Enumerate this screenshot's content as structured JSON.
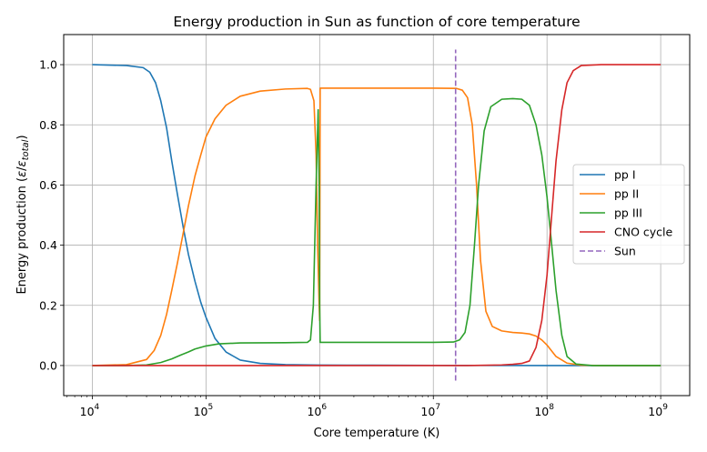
{
  "chart_data": {
    "type": "line",
    "title": "Energy production in Sun as function of core temperature",
    "xlabel": "Core temperature (K)",
    "ylabel": "Energy production (ε/ε_total)",
    "xscale": "log",
    "xlim": [
      5600.0,
      1800000000.0
    ],
    "ylim": [
      -0.1,
      1.1
    ],
    "grid": true,
    "legend_position": "center-right",
    "x_ticks": [
      {
        "exp": "4",
        "value": 10000.0
      },
      {
        "exp": "5",
        "value": 100000.0
      },
      {
        "exp": "6",
        "value": 1000000.0
      },
      {
        "exp": "7",
        "value": 10000000.0
      },
      {
        "exp": "8",
        "value": 100000000.0
      },
      {
        "exp": "9",
        "value": 1000000000.0
      }
    ],
    "y_ticks": [
      {
        "label": "0.0",
        "value": 0.0
      },
      {
        "label": "0.2",
        "value": 0.2
      },
      {
        "label": "0.4",
        "value": 0.4
      },
      {
        "label": "0.6",
        "value": 0.6
      },
      {
        "label": "0.8",
        "value": 0.8
      },
      {
        "label": "1.0",
        "value": 1.0
      }
    ],
    "series": [
      {
        "name": "pp I",
        "color": "#1f77b4",
        "style": "solid",
        "points": [
          [
            10000.0,
            1.0
          ],
          [
            20000.0,
            0.997
          ],
          [
            28000.0,
            0.99
          ],
          [
            32000.0,
            0.975
          ],
          [
            36000.0,
            0.94
          ],
          [
            40000.0,
            0.88
          ],
          [
            45000.0,
            0.79
          ],
          [
            50000.0,
            0.68
          ],
          [
            56000.0,
            0.57
          ],
          [
            63000.0,
            0.46
          ],
          [
            70000.0,
            0.37
          ],
          [
            80000.0,
            0.28
          ],
          [
            90000.0,
            0.21
          ],
          [
            100000.0,
            0.16
          ],
          [
            120000.0,
            0.09
          ],
          [
            150000.0,
            0.045
          ],
          [
            200000.0,
            0.018
          ],
          [
            300000.0,
            0.007
          ],
          [
            500000.0,
            0.003
          ],
          [
            1000000.0,
            0.0015
          ],
          [
            3000000.0,
            0.001
          ],
          [
            10000000.0,
            0.0005
          ],
          [
            30000000.0,
            0.0002
          ],
          [
            100000000.0,
            0.0
          ],
          [
            1000000000.0,
            0.0
          ]
        ]
      },
      {
        "name": "pp II",
        "color": "#ff7f0e",
        "style": "solid",
        "points": [
          [
            10000.0,
            0.0
          ],
          [
            20000.0,
            0.003
          ],
          [
            30000.0,
            0.02
          ],
          [
            35000.0,
            0.05
          ],
          [
            40000.0,
            0.1
          ],
          [
            45000.0,
            0.17
          ],
          [
            50000.0,
            0.25
          ],
          [
            56000.0,
            0.34
          ],
          [
            63000.0,
            0.44
          ],
          [
            70000.0,
            0.53
          ],
          [
            80000.0,
            0.63
          ],
          [
            90000.0,
            0.7
          ],
          [
            100000.0,
            0.76
          ],
          [
            120000.0,
            0.82
          ],
          [
            150000.0,
            0.865
          ],
          [
            200000.0,
            0.895
          ],
          [
            300000.0,
            0.912
          ],
          [
            500000.0,
            0.919
          ],
          [
            780000.0,
            0.921
          ],
          [
            830000.0,
            0.918
          ],
          [
            890000.0,
            0.88
          ],
          [
            930000.0,
            0.7
          ],
          [
            960000.0,
            0.4
          ],
          [
            990000.0,
            0.2
          ],
          [
            1000000.0,
            0.15
          ],
          [
            1010000.0,
            0.922
          ],
          [
            3000000.0,
            0.922
          ],
          [
            10000000.0,
            0.922
          ],
          [
            16000000.0,
            0.921
          ],
          [
            18000000.0,
            0.915
          ],
          [
            20000000.0,
            0.89
          ],
          [
            22000000.0,
            0.8
          ],
          [
            24000000.0,
            0.6
          ],
          [
            26000000.0,
            0.35
          ],
          [
            29000000.0,
            0.18
          ],
          [
            33000000.0,
            0.13
          ],
          [
            40000000.0,
            0.115
          ],
          [
            50000000.0,
            0.11
          ],
          [
            60000000.0,
            0.108
          ],
          [
            70000000.0,
            0.105
          ],
          [
            80000000.0,
            0.098
          ],
          [
            90000000.0,
            0.085
          ],
          [
            100000000.0,
            0.068
          ],
          [
            120000000.0,
            0.03
          ],
          [
            150000000.0,
            0.008
          ],
          [
            200000000.0,
            0.001
          ],
          [
            300000000.0,
            0.0
          ],
          [
            1000000000.0,
            0.0
          ]
        ]
      },
      {
        "name": "pp III",
        "color": "#2ca02c",
        "style": "solid",
        "points": [
          [
            10000.0,
            0.0
          ],
          [
            20000.0,
            0.0
          ],
          [
            30000.0,
            0.002
          ],
          [
            40000.0,
            0.01
          ],
          [
            50000.0,
            0.022
          ],
          [
            60000.0,
            0.035
          ],
          [
            70000.0,
            0.045
          ],
          [
            80000.0,
            0.055
          ],
          [
            100000.0,
            0.065
          ],
          [
            130000.0,
            0.072
          ],
          [
            200000.0,
            0.075
          ],
          [
            500000.0,
            0.076
          ],
          [
            780000.0,
            0.077
          ],
          [
            830000.0,
            0.085
          ],
          [
            880000.0,
            0.2
          ],
          [
            930000.0,
            0.6
          ],
          [
            970000.0,
            0.85
          ],
          [
            990000.0,
            0.6
          ],
          [
            1000000.0,
            0.2
          ],
          [
            1010000.0,
            0.077
          ],
          [
            3000000.0,
            0.077
          ],
          [
            10000000.0,
            0.077
          ],
          [
            15000000.0,
            0.078
          ],
          [
            17000000.0,
            0.085
          ],
          [
            19000000.0,
            0.11
          ],
          [
            21000000.0,
            0.2
          ],
          [
            23000000.0,
            0.4
          ],
          [
            25000000.0,
            0.6
          ],
          [
            28000000.0,
            0.78
          ],
          [
            32000000.0,
            0.86
          ],
          [
            40000000.0,
            0.885
          ],
          [
            50000000.0,
            0.887
          ],
          [
            60000000.0,
            0.885
          ],
          [
            70000000.0,
            0.865
          ],
          [
            80000000.0,
            0.8
          ],
          [
            90000000.0,
            0.7
          ],
          [
            100000000.0,
            0.56
          ],
          [
            110000000.0,
            0.4
          ],
          [
            120000000.0,
            0.25
          ],
          [
            135000000.0,
            0.1
          ],
          [
            150000000.0,
            0.03
          ],
          [
            180000000.0,
            0.005
          ],
          [
            250000000.0,
            0.0
          ],
          [
            1000000000.0,
            0.0
          ]
        ]
      },
      {
        "name": "CNO cycle",
        "color": "#d62728",
        "style": "solid",
        "points": [
          [
            10000.0,
            0.0
          ],
          [
            10000000.0,
            0.0
          ],
          [
            20000000.0,
            0.0
          ],
          [
            30000000.0,
            0.001
          ],
          [
            40000000.0,
            0.002
          ],
          [
            50000000.0,
            0.004
          ],
          [
            60000000.0,
            0.007
          ],
          [
            70000000.0,
            0.015
          ],
          [
            80000000.0,
            0.06
          ],
          [
            90000000.0,
            0.15
          ],
          [
            100000000.0,
            0.3
          ],
          [
            110000000.0,
            0.5
          ],
          [
            120000000.0,
            0.68
          ],
          [
            135000000.0,
            0.85
          ],
          [
            150000000.0,
            0.94
          ],
          [
            170000000.0,
            0.98
          ],
          [
            200000000.0,
            0.997
          ],
          [
            300000000.0,
            1.0
          ],
          [
            1000000000.0,
            1.0
          ]
        ]
      },
      {
        "name": "Sun",
        "color": "#9467bd",
        "style": "dashed",
        "points": [
          [
            15700000.0,
            -0.05
          ],
          [
            15700000.0,
            1.05
          ]
        ]
      }
    ]
  }
}
